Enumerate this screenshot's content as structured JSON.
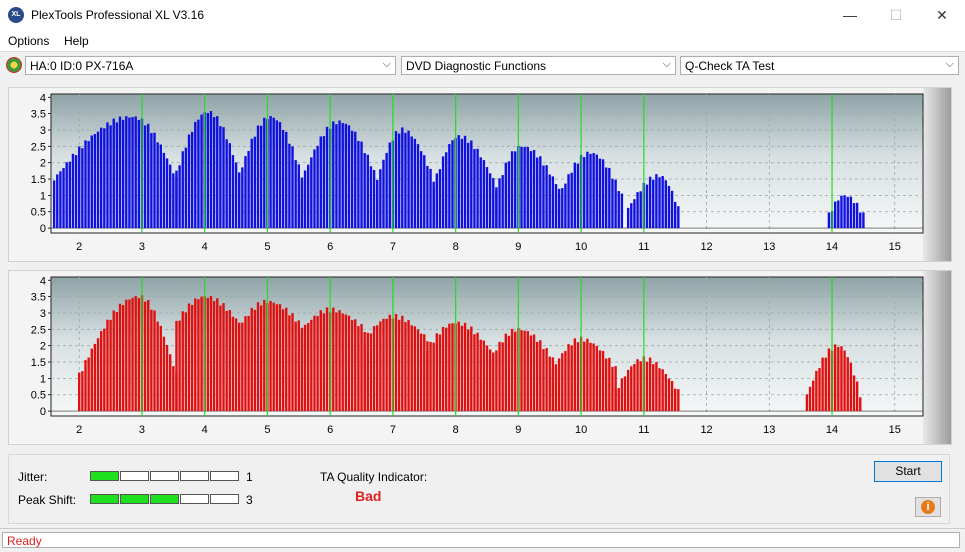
{
  "window": {
    "title": "PlexTools Professional XL V3.16",
    "icon_text": "XL",
    "min_glyph": "—",
    "max_glyph": "☐",
    "close_glyph": "✕"
  },
  "menu": [
    "Options",
    "Help"
  ],
  "toolbar": {
    "drive": "HA:0 ID:0  PX-716A",
    "function": "DVD Diagnostic Functions",
    "test": "Q-Check TA Test",
    "arrow": "⌵"
  },
  "colors": {
    "top_bars": "#1010e0",
    "bottom_bars": "#e01010",
    "marker": "#22dd22",
    "accent_bad": "#e02020"
  },
  "chart_data": [
    {
      "type": "bar",
      "name": "top",
      "x_ticks": [
        "2",
        "3",
        "4",
        "5",
        "6",
        "7",
        "8",
        "9",
        "10",
        "11",
        "12",
        "13",
        "14",
        "15"
      ],
      "y_ticks": [
        "0",
        "0.5",
        "1",
        "1.5",
        "2",
        "2.5",
        "3",
        "3.5",
        "4"
      ],
      "xlim": [
        1.55,
        15.45
      ],
      "ylim": [
        -0.15,
        4.1
      ],
      "markers": [
        3,
        4,
        5,
        6,
        7,
        8,
        9,
        10,
        11,
        14
      ],
      "lobes": [
        {
          "start": 1.6,
          "peak": 2.85,
          "end": 3.55,
          "top": 3.4,
          "base": 1.5
        },
        {
          "start": 3.55,
          "peak": 4.05,
          "end": 4.55,
          "top": 3.55,
          "base": 1.7
        },
        {
          "start": 4.55,
          "peak": 5.05,
          "end": 5.55,
          "top": 3.4,
          "base": 1.6
        },
        {
          "start": 5.55,
          "peak": 6.15,
          "end": 6.75,
          "top": 3.25,
          "base": 1.5
        },
        {
          "start": 6.75,
          "peak": 7.15,
          "end": 7.65,
          "top": 3.0,
          "base": 1.5
        },
        {
          "start": 7.65,
          "peak": 8.05,
          "end": 8.65,
          "top": 2.8,
          "base": 1.3
        },
        {
          "start": 8.65,
          "peak": 9.05,
          "end": 9.65,
          "top": 2.5,
          "base": 1.2
        },
        {
          "start": 9.65,
          "peak": 10.15,
          "end": 10.65,
          "top": 2.3,
          "base": 1.0
        },
        {
          "start": 10.75,
          "peak": 11.25,
          "end": 11.55,
          "top": 1.6,
          "base": 0.6
        },
        {
          "start": 13.95,
          "peak": 14.2,
          "end": 14.5,
          "top": 1.0,
          "base": 0.4
        }
      ]
    },
    {
      "type": "bar",
      "name": "bottom",
      "x_ticks": [
        "2",
        "3",
        "4",
        "5",
        "6",
        "7",
        "8",
        "9",
        "10",
        "11",
        "12",
        "13",
        "14",
        "15"
      ],
      "y_ticks": [
        "0",
        "0.5",
        "1",
        "1.5",
        "2",
        "2.5",
        "3",
        "3.5",
        "4"
      ],
      "xlim": [
        1.55,
        15.45
      ],
      "ylim": [
        -0.15,
        4.1
      ],
      "markers": [
        3,
        4,
        5,
        6,
        7,
        8,
        9,
        10,
        11,
        14
      ],
      "lobes": [
        {
          "start": 2.0,
          "peak": 2.95,
          "end": 3.55,
          "top": 3.5,
          "base": 1.1
        },
        {
          "start": 3.55,
          "peak": 4.0,
          "end": 4.55,
          "top": 3.5,
          "base": 2.7
        },
        {
          "start": 4.55,
          "peak": 5.0,
          "end": 5.55,
          "top": 3.35,
          "base": 2.6
        },
        {
          "start": 5.55,
          "peak": 6.0,
          "end": 6.55,
          "top": 3.1,
          "base": 2.5
        },
        {
          "start": 6.55,
          "peak": 7.0,
          "end": 7.55,
          "top": 2.9,
          "base": 2.2
        },
        {
          "start": 7.55,
          "peak": 8.0,
          "end": 8.55,
          "top": 2.7,
          "base": 1.9
        },
        {
          "start": 8.55,
          "peak": 9.0,
          "end": 9.55,
          "top": 2.5,
          "base": 1.6
        },
        {
          "start": 9.55,
          "peak": 10.0,
          "end": 10.55,
          "top": 2.2,
          "base": 1.3
        },
        {
          "start": 10.55,
          "peak": 11.0,
          "end": 11.55,
          "top": 1.6,
          "base": 0.6
        },
        {
          "start": 13.6,
          "peak": 14.1,
          "end": 14.45,
          "top": 2.0,
          "base": 0.5
        }
      ]
    }
  ],
  "jitter": {
    "label": "Jitter:",
    "segments_total": 5,
    "segments_on": 1,
    "value": "1"
  },
  "peak_shift": {
    "label": "Peak Shift:",
    "segments_total": 5,
    "segments_on": 3,
    "value": "3"
  },
  "ta_quality": {
    "label": "TA Quality Indicator:",
    "value": "Bad"
  },
  "start_button": "Start",
  "info_icon": "i",
  "status": "Ready"
}
